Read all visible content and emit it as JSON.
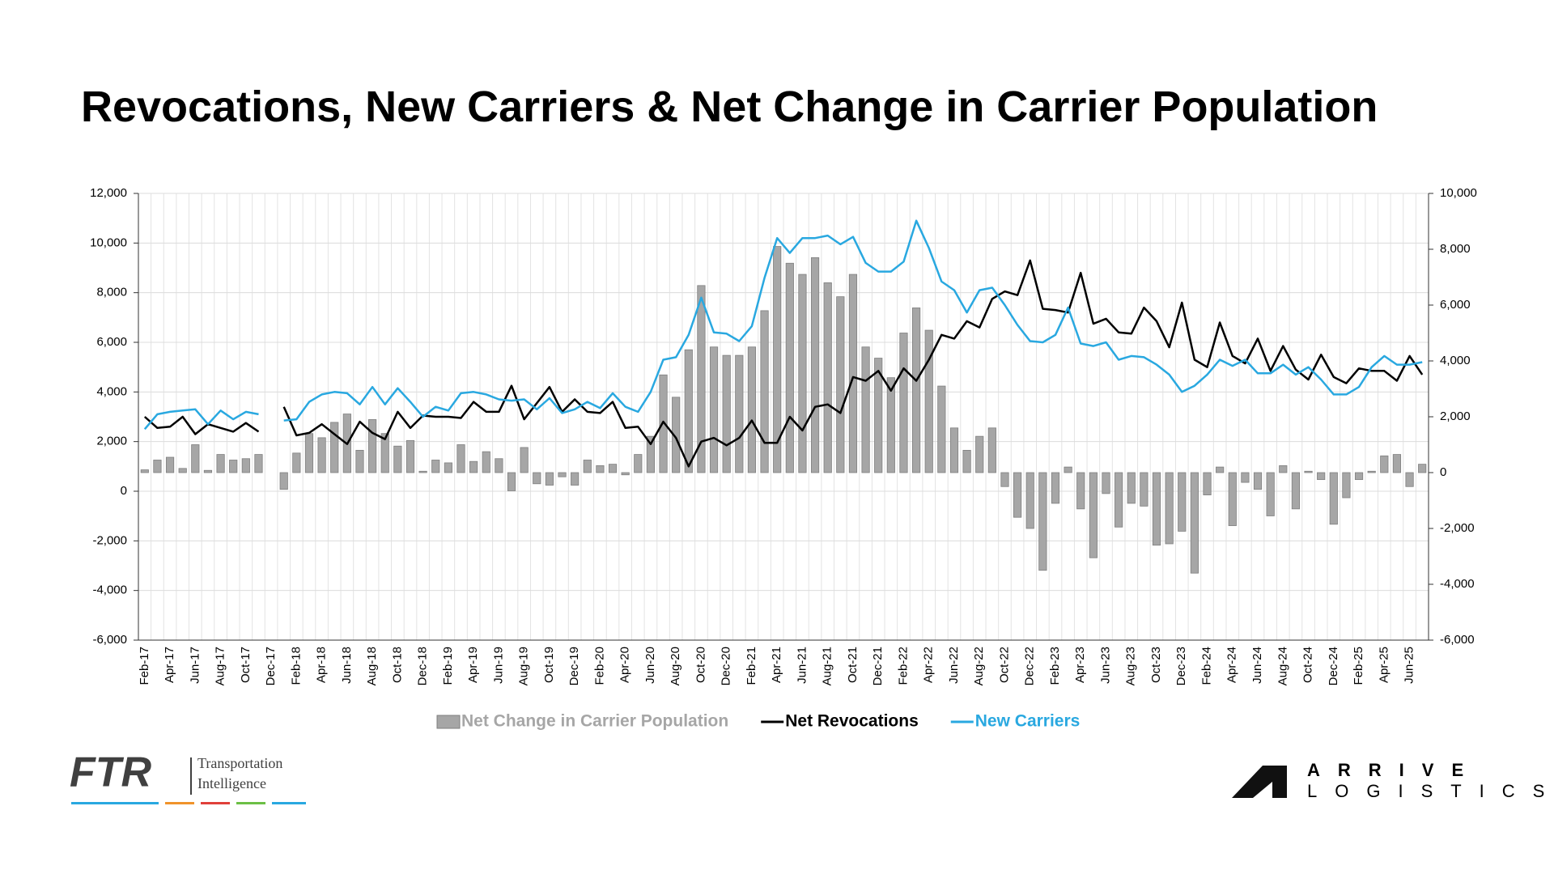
{
  "chart_data": {
    "type": "bar_line",
    "title": "Revocations, New Carriers & Net Change in Carrier Population",
    "categories": [
      "Feb-17",
      null,
      "Apr-17",
      null,
      "Jun-17",
      null,
      "Aug-17",
      null,
      "Oct-17",
      null,
      "Dec-17",
      null,
      "Feb-18",
      null,
      "Apr-18",
      null,
      "Jun-18",
      null,
      "Aug-18",
      null,
      "Oct-18",
      null,
      "Dec-18",
      null,
      "Feb-19",
      null,
      "Apr-19",
      null,
      "Jun-19",
      null,
      "Aug-19",
      null,
      "Oct-19",
      null,
      "Dec-19",
      null,
      "Feb-20",
      null,
      "Apr-20",
      null,
      "Jun-20",
      null,
      "Aug-20",
      null,
      "Oct-20",
      null,
      "Dec-20",
      null,
      "Feb-21",
      null,
      "Apr-21",
      null,
      "Jun-21",
      null,
      "Aug-21",
      null,
      "Oct-21",
      null,
      "Dec-21",
      null,
      "Feb-22",
      null,
      "Apr-22",
      null,
      "Jun-22",
      null,
      "Aug-22",
      null,
      "Oct-22",
      null,
      "Dec-22",
      null,
      "Feb-23",
      null,
      "Apr-23",
      null,
      "Jun-23",
      null,
      "Aug-23",
      null,
      "Oct-23",
      null,
      "Dec-23",
      null,
      "Feb-24",
      null,
      "Apr-24",
      null,
      "Jun-24",
      null,
      "Aug-24",
      null,
      "Oct-24",
      null,
      "Dec-24",
      null,
      "Feb-25",
      null,
      "Apr-25",
      null,
      "Jun-25",
      null
    ],
    "series": [
      {
        "name": "Net Change in Carrier Population",
        "kind": "bar",
        "axis": "y2",
        "color": "#a6a6a6",
        "values": [
          100,
          450,
          550,
          150,
          1000,
          80,
          650,
          450,
          500,
          650,
          null,
          -600,
          700,
          1400,
          1250,
          1800,
          2100,
          800,
          1900,
          1400,
          950,
          1150,
          50,
          450,
          350,
          1000,
          400,
          750,
          500,
          -650,
          900,
          -400,
          -450,
          -150,
          -450,
          450,
          250,
          300,
          -80,
          650,
          1300,
          3500,
          2700,
          4400,
          6700,
          4500,
          4200,
          4200,
          4500,
          5800,
          8100,
          7500,
          7100,
          7700,
          6800,
          6300,
          7100,
          4500,
          4100,
          3400,
          5000,
          5900,
          5100,
          3100,
          1600,
          800,
          1300,
          1600,
          -500,
          -1600,
          -2000,
          -3500,
          -1100,
          200,
          -1300,
          -3050,
          -750,
          -1950,
          -1100,
          -1200,
          -2600,
          -2550,
          -2100,
          -3600,
          -800,
          200,
          -1900,
          -350,
          -600,
          -1550,
          250,
          -1300,
          50,
          -250,
          -1850,
          -900,
          -250,
          50,
          600,
          650,
          -500,
          300
        ]
      },
      {
        "name": "Net Revocations",
        "kind": "line",
        "color": "#000000",
        "values": [
          3000,
          2550,
          2600,
          3000,
          2300,
          2700,
          2550,
          2400,
          2750,
          2400,
          null,
          3400,
          2250,
          2350,
          2700,
          2300,
          1900,
          2800,
          2350,
          2100,
          3200,
          2550,
          3050,
          3000,
          3000,
          2950,
          3600,
          3200,
          3200,
          4250,
          2900,
          3550,
          4200,
          3200,
          3700,
          3200,
          3150,
          3600,
          2550,
          2600,
          1900,
          2800,
          2150,
          1000,
          2000,
          2150,
          1850,
          2150,
          2850,
          1950,
          1950,
          3000,
          2450,
          3400,
          3500,
          3150,
          4600,
          4450,
          4850,
          4050,
          4950,
          4450,
          5300,
          6300,
          6150,
          6850,
          6600,
          7750,
          8050,
          7900,
          9300,
          7350,
          7300,
          7200,
          8800,
          6750,
          6950,
          6400,
          6350,
          7400,
          6850,
          5800,
          7600,
          5300,
          5000,
          6800,
          5450,
          5150,
          6150,
          4850,
          5850,
          4900,
          4500,
          5500,
          4600,
          4350,
          4950,
          4850,
          4850,
          4450,
          5450,
          4700
        ]
      },
      {
        "name": "New Carriers",
        "kind": "line",
        "color": "#29a8e0",
        "values": [
          2500,
          3100,
          3200,
          3250,
          3300,
          2700,
          3250,
          2900,
          3200,
          3100,
          null,
          2850,
          2900,
          3600,
          3900,
          4000,
          3950,
          3500,
          4200,
          3500,
          4150,
          3600,
          3000,
          3400,
          3250,
          3950,
          4000,
          3900,
          3700,
          3650,
          3700,
          3300,
          3750,
          3150,
          3300,
          3600,
          3350,
          3950,
          3400,
          3200,
          4000,
          5300,
          5400,
          6300,
          7800,
          6400,
          6350,
          6050,
          6650,
          8600,
          10200,
          9600,
          10200,
          10200,
          10300,
          9950,
          10250,
          9200,
          8850,
          8850,
          9250,
          10900,
          9800,
          8450,
          8100,
          7200,
          8100,
          8200,
          7500,
          6700,
          6050,
          6000,
          6300,
          7400,
          5950,
          5850,
          6000,
          5300,
          5450,
          5400,
          5100,
          4700,
          4000,
          4250,
          4700,
          5300,
          5050,
          5300,
          4750,
          4750,
          5100,
          4700,
          5000,
          4500,
          3900,
          3900,
          4200,
          5000,
          5450,
          5100,
          5100,
          5200
        ]
      }
    ],
    "ylim": [
      -6000,
      12000
    ],
    "yticks": [
      {
        "value": -6000,
        "label": "-6,000"
      },
      {
        "value": -4000,
        "label": "-4,000"
      },
      {
        "value": -2000,
        "label": "-2,000"
      },
      0,
      {
        "value": 2000,
        "label": "2,000"
      },
      {
        "value": 4000,
        "label": "4,000"
      },
      {
        "value": 6000,
        "label": "6,000"
      },
      {
        "value": 8000,
        "label": "8,000"
      },
      {
        "value": 10000,
        "label": "10,000"
      },
      {
        "value": 12000,
        "label": "12,000"
      }
    ],
    "y2lim": [
      -6000,
      10000
    ],
    "y2ticks": [
      {
        "value": -6000,
        "label": "-6,000"
      },
      {
        "value": -4000,
        "label": "-4,000"
      },
      {
        "value": -2000,
        "label": "-2,000"
      },
      0,
      {
        "value": 2000,
        "label": "2,000"
      },
      {
        "value": 4000,
        "label": "4,000"
      },
      {
        "value": 6000,
        "label": "6,000"
      },
      {
        "value": 8000,
        "label": "8,000"
      },
      {
        "value": 10000,
        "label": "10,000"
      }
    ],
    "grid": true,
    "legend": "bottom"
  },
  "logos": {
    "ftr": "FTR",
    "ftr_line1": "Transportation",
    "ftr_line2": "Intelligence",
    "arrive": "ARRIVE",
    "logistics": "LOGISTICS"
  }
}
